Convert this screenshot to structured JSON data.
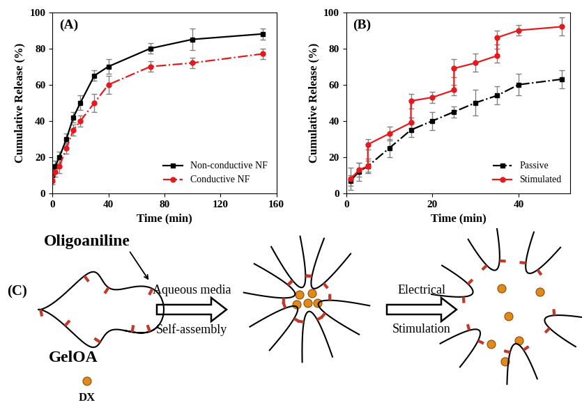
{
  "chart_data": [
    {
      "type": "line",
      "title": "(A)",
      "x_label": "Time (min)",
      "y_label": "Cumulative Release (%)",
      "xlim": [
        0,
        160
      ],
      "xticks": [
        0,
        40,
        80,
        120,
        160
      ],
      "ylim": [
        0,
        100
      ],
      "yticks": [
        0,
        20,
        40,
        60,
        80,
        100
      ],
      "legend": "lower right",
      "series": [
        {
          "name": "Non-conductive NF",
          "color": "#000000",
          "marker": "square",
          "line_style": "solid",
          "x": [
            0,
            2,
            5,
            10,
            15,
            20,
            30,
            40,
            70,
            100,
            150
          ],
          "values": [
            10,
            15,
            20,
            30,
            42,
            50,
            65,
            70,
            80,
            85,
            88
          ],
          "errors": [
            2,
            3,
            3,
            3,
            3,
            4,
            3,
            4,
            3,
            6,
            3
          ]
        },
        {
          "name": "Conductive NF",
          "color": "#e8191c",
          "marker": "circle",
          "line_style": "dashdot",
          "x": [
            0,
            2,
            5,
            10,
            15,
            20,
            30,
            40,
            70,
            100,
            150
          ],
          "values": [
            7,
            12,
            15,
            25,
            35,
            40,
            50,
            60,
            70,
            72,
            77
          ],
          "errors": [
            2,
            3,
            4,
            3,
            3,
            3,
            5,
            5,
            3,
            3,
            3
          ]
        }
      ]
    },
    {
      "type": "line",
      "title": "(B)",
      "x_label": "Time (min)",
      "y_label": "Cumulative Release (%)",
      "xlim": [
        0,
        52
      ],
      "xticks": [
        0,
        20,
        40
      ],
      "ylim": [
        0,
        100
      ],
      "yticks": [
        0,
        20,
        40,
        60,
        80,
        100
      ],
      "legend": "lower right",
      "series": [
        {
          "name": "Passive",
          "color": "#000000",
          "marker": "square",
          "line_style": "dashdot",
          "x": [
            1,
            3,
            5,
            10,
            15,
            20,
            25,
            30,
            35,
            40,
            50
          ],
          "values": [
            7,
            12,
            15,
            25,
            35,
            40,
            45,
            50,
            54,
            60,
            63
          ],
          "errors": [
            3,
            5,
            4,
            5,
            4,
            5,
            3,
            7,
            5,
            6,
            5
          ]
        },
        {
          "name": "Stimulated",
          "color": "#e8191c",
          "marker": "circle",
          "line_style": "solid",
          "x": [
            1,
            3,
            5,
            5,
            10,
            15,
            15,
            20,
            25,
            25,
            30,
            35,
            35,
            40,
            50
          ],
          "values": [
            8,
            13,
            15,
            27,
            33,
            39,
            51,
            53,
            57,
            69,
            72,
            76,
            86,
            90,
            92
          ],
          "errors": [
            6,
            4,
            3,
            3,
            4,
            3,
            4,
            3,
            3,
            5,
            5,
            4,
            4,
            3,
            5
          ]
        }
      ]
    }
  ],
  "diagram": {
    "label": "(C)",
    "oligoaniline": "Oligoaniline",
    "gel": "GelOA",
    "drug": "DX",
    "step1_top": "Aqueous media",
    "step1_bottom": "Self-assembly",
    "step2_top": "Electrical",
    "step2_bottom": "Stimulation"
  }
}
